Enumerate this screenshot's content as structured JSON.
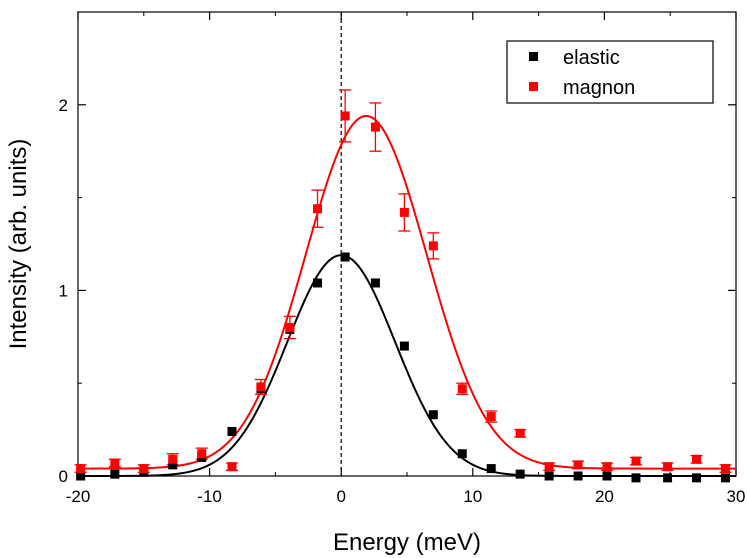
{
  "chart_data": {
    "type": "scatter",
    "title": "",
    "xlabel": "Energy (meV)",
    "ylabel": "Intensity (arb. units)",
    "xlim": [
      -20,
      30
    ],
    "ylim": [
      0,
      2.5
    ],
    "x_ticks": [
      -20,
      -10,
      0,
      10,
      20,
      30
    ],
    "x_tick_labels": [
      "-20",
      "-10",
      "0",
      "10",
      "20",
      "30"
    ],
    "y_ticks": [
      0,
      1,
      2
    ],
    "y_tick_labels": [
      "0",
      "1",
      "2"
    ],
    "grid": false,
    "legend_position": "top-right",
    "reference_line": {
      "x": 0,
      "style": "dashed"
    },
    "series": [
      {
        "name": "elastic",
        "color": "#000000",
        "marker": "square",
        "x": [
          -19.8,
          -17.2,
          -15.0,
          -12.8,
          -10.6,
          -8.3,
          -6.1,
          -3.9,
          -1.8,
          0.3,
          2.6,
          4.8,
          7.0,
          9.2,
          11.4,
          13.6,
          15.8,
          18.0,
          20.2,
          22.4,
          24.8,
          27.0,
          29.2
        ],
        "y": [
          0.0,
          0.01,
          0.02,
          0.06,
          0.1,
          0.24,
          0.47,
          0.79,
          1.04,
          1.18,
          1.04,
          0.7,
          0.33,
          0.12,
          0.04,
          0.01,
          0.0,
          0.0,
          0.0,
          -0.01,
          -0.01,
          -0.01,
          -0.01
        ],
        "fit_curve": {
          "amplitude": 1.19,
          "center": 0.0,
          "sigma": 4.1,
          "offset": 0.0
        }
      },
      {
        "name": "magnon",
        "color": "#ff0000",
        "marker": "square",
        "x": [
          -19.8,
          -17.2,
          -15.0,
          -12.8,
          -10.6,
          -8.3,
          -6.1,
          -3.9,
          -1.8,
          0.3,
          2.6,
          4.8,
          7.0,
          9.2,
          11.4,
          13.6,
          15.8,
          18.0,
          20.2,
          22.4,
          24.8,
          27.0,
          29.2
        ],
        "y": [
          0.04,
          0.07,
          0.04,
          0.09,
          0.12,
          0.05,
          0.48,
          0.8,
          1.44,
          1.94,
          1.88,
          1.42,
          1.24,
          0.47,
          0.32,
          0.23,
          0.05,
          0.06,
          0.05,
          0.08,
          0.05,
          0.09,
          0.04
        ],
        "y_err": [
          0.02,
          0.02,
          0.02,
          0.03,
          0.03,
          0.02,
          0.04,
          0.06,
          0.1,
          0.14,
          0.13,
          0.1,
          0.07,
          0.03,
          0.03,
          0.02,
          0.02,
          0.02,
          0.02,
          0.02,
          0.02,
          0.02,
          0.02
        ],
        "fit_curve": {
          "amplitude": 1.9,
          "center": 1.9,
          "sigma": 4.6,
          "offset": 0.04
        }
      }
    ]
  }
}
